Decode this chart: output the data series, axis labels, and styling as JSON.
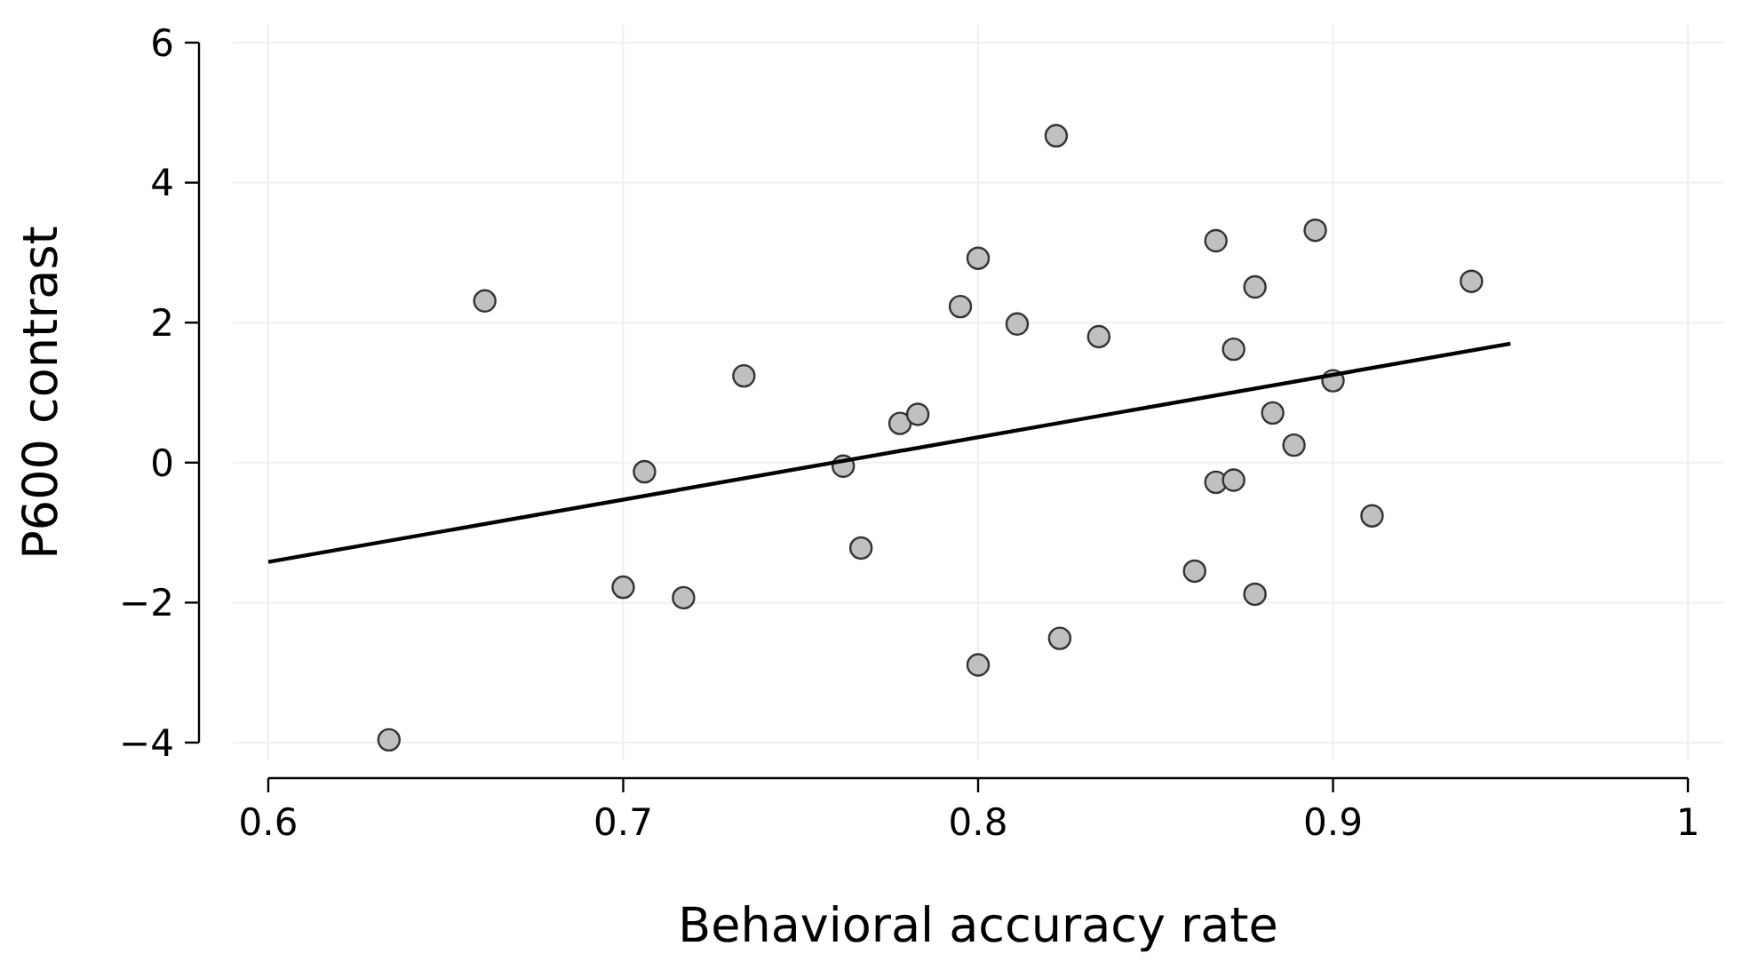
{
  "chart_data": {
    "type": "scatter",
    "xlabel": "Behavioral accuracy rate",
    "ylabel": "P600 contrast",
    "xlim": [
      0.6,
      1
    ],
    "xticks": [
      0.6,
      0.7,
      0.8,
      0.9,
      1
    ],
    "ylim": [
      -4,
      6
    ],
    "yticks": [
      {
        "value": -4,
        "label": "−4"
      },
      {
        "value": -2,
        "label": "−2"
      },
      0,
      2,
      4,
      6
    ],
    "grid": true,
    "series": [
      {
        "marker": "circle",
        "color": "#c0c0c0",
        "x": [
          0.634,
          0.661,
          0.7,
          0.706,
          0.717,
          0.734,
          0.762,
          0.767,
          0.778,
          0.783,
          0.795,
          0.8,
          0.8,
          0.811,
          0.822,
          0.823,
          0.834,
          0.861,
          0.867,
          0.867,
          0.872,
          0.872,
          0.878,
          0.878,
          0.883,
          0.889,
          0.895,
          0.9,
          0.911,
          0.939
        ],
        "values": [
          -3.96,
          2.31,
          -1.78,
          -0.13,
          -1.93,
          1.24,
          -0.05,
          -1.22,
          0.56,
          0.69,
          2.23,
          2.92,
          -2.89,
          1.98,
          4.67,
          -2.51,
          1.8,
          -1.55,
          3.17,
          -0.28,
          1.62,
          -0.25,
          2.51,
          -1.88,
          0.71,
          0.25,
          3.32,
          1.17,
          -0.76,
          2.59
        ]
      },
      {
        "type": "line",
        "color": "#000000",
        "x": [
          0.6,
          0.95
        ],
        "values": [
          -1.42,
          1.7
        ]
      }
    ]
  }
}
